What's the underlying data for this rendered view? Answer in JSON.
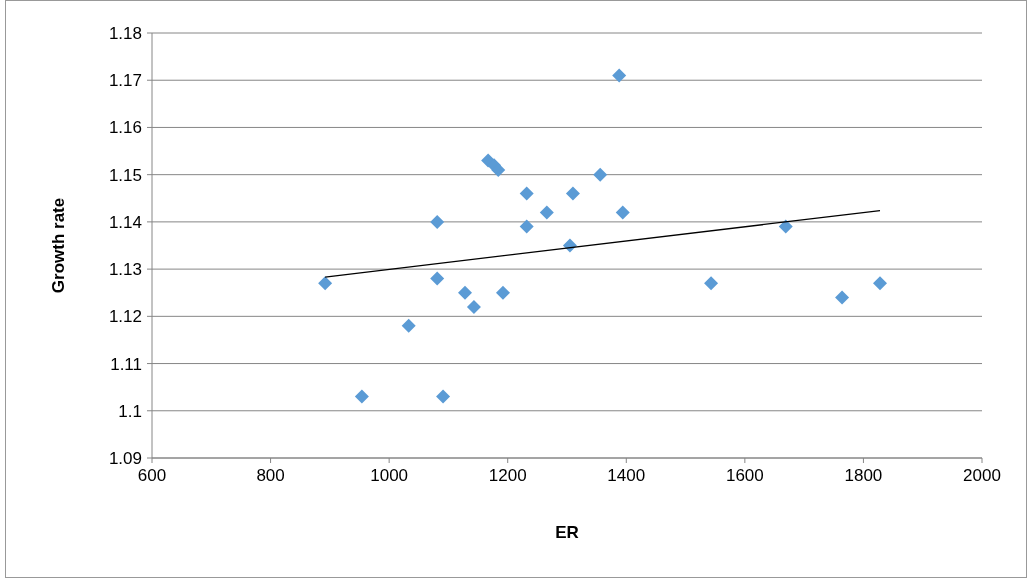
{
  "chart_data": {
    "type": "scatter",
    "xlabel": "ER",
    "ylabel": "Growth rate",
    "xlim": [
      600,
      2000
    ],
    "xticks": [
      600,
      800,
      1000,
      1200,
      1400,
      1600,
      1800,
      2000
    ],
    "ylim": [
      1.09,
      1.18
    ],
    "yticks": [
      1.09,
      1.1,
      1.11,
      1.12,
      1.13,
      1.14,
      1.15,
      1.16,
      1.17,
      1.18
    ],
    "grid": "y",
    "series": [
      {
        "color": "#5b9bd5",
        "marker": "diamond",
        "x": [
          892,
          954,
          1033,
          1081,
          1081,
          1091,
          1128,
          1143,
          1167,
          1177,
          1184,
          1192,
          1232,
          1232,
          1266,
          1305,
          1310,
          1356,
          1388,
          1394,
          1543,
          1669,
          1764,
          1828
        ],
        "values": [
          1.127,
          1.103,
          1.118,
          1.14,
          1.128,
          1.103,
          1.125,
          1.122,
          1.153,
          1.152,
          1.151,
          1.125,
          1.146,
          1.139,
          1.142,
          1.135,
          1.146,
          1.15,
          1.171,
          1.142,
          1.127,
          1.139,
          1.124,
          1.127
        ]
      },
      {
        "type": "line",
        "color": "#000000",
        "marker": "none",
        "line_style": "solid",
        "x": [
          892,
          1828
        ],
        "values": [
          1.1283,
          1.1424
        ]
      }
    ]
  }
}
